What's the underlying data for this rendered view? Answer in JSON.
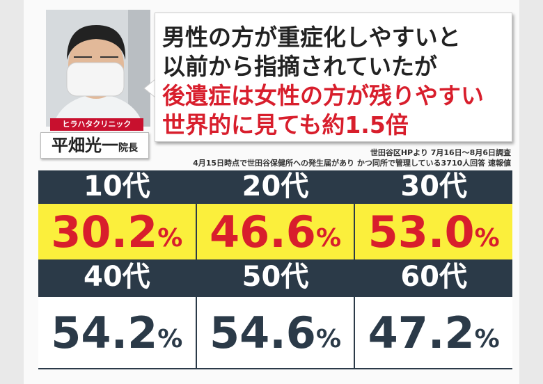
{
  "speaker": {
    "clinic": "ヒラハタクリニック",
    "name": "平畑光一",
    "title": "院長"
  },
  "headline": {
    "lines": [
      "男性の方が重症化しやすいと",
      "以前から指摘されていたが",
      "後遺症は女性の方が残りやすい",
      "世界的に見ても約1.5倍"
    ]
  },
  "source": {
    "lines": [
      "世田谷区HPより 7月16日～8月6日調査",
      "4月15日時点で世田谷保健所への発生届があり かつ同所で管理している3710人回答 速報値"
    ]
  },
  "table": {
    "cells": [
      {
        "label": "10代",
        "value": "30.2",
        "unit": "%"
      },
      {
        "label": "20代",
        "value": "46.6",
        "unit": "%"
      },
      {
        "label": "30代",
        "value": "53.0",
        "unit": "%"
      },
      {
        "label": "40代",
        "value": "54.2",
        "unit": "%"
      },
      {
        "label": "50代",
        "value": "54.6",
        "unit": "%"
      },
      {
        "label": "60代",
        "value": "47.2",
        "unit": "%"
      }
    ]
  }
}
